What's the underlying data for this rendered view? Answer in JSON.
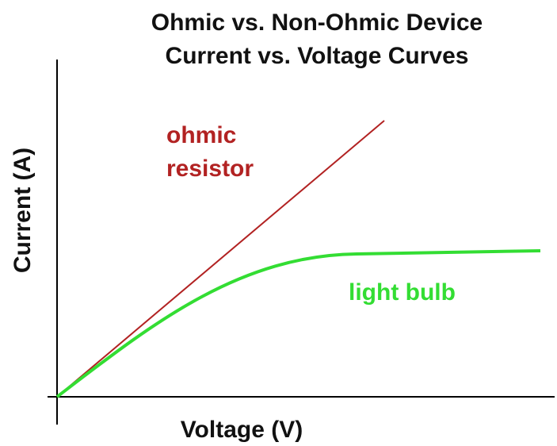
{
  "header": {
    "title_lines": [
      "Ohmic vs. Non-Ohmic Device",
      "Current vs. Voltage Curves"
    ]
  },
  "axes": {
    "x_label": "Voltage (V)",
    "y_label": "Current (A)"
  },
  "curves": [
    {
      "label_lines": [
        "ohmic",
        "resistor"
      ]
    },
    {
      "label": "light bulb"
    }
  ]
}
